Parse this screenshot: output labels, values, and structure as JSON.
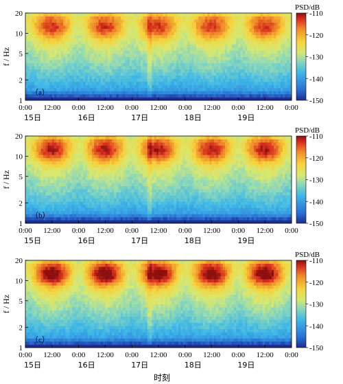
{
  "chart_data": [
    {
      "type": "heatmap",
      "panel_label": "（a）",
      "ylabel": "f / Hz",
      "y_scale": "log",
      "ylim": [
        1,
        20
      ],
      "y_ticks": [
        "1",
        "2",
        "5",
        "10",
        "20"
      ],
      "x_tick_labels": [
        "0:00",
        "12:00",
        "0:00",
        "12:00",
        "0:00",
        "12:00",
        "0:00",
        "12:00",
        "0:00",
        "12:00",
        "0:00"
      ],
      "day_labels": [
        "15日",
        "16日",
        "17日",
        "18日",
        "19日"
      ],
      "colorbar": {
        "title": "PSD/dB",
        "range": [
          -150,
          -110
        ],
        "ticks": [
          "-110",
          "-120",
          "-130",
          "-140",
          "-150"
        ]
      }
    },
    {
      "type": "heatmap",
      "panel_label": "（b）",
      "ylabel": "f / Hz",
      "y_scale": "log",
      "ylim": [
        1,
        20
      ],
      "y_ticks": [
        "1",
        "2",
        "5",
        "10",
        "20"
      ],
      "x_tick_labels": [
        "0:00",
        "12:00",
        "0:00",
        "12:00",
        "0:00",
        "12:00",
        "0:00",
        "12:00",
        "0:00",
        "12:00",
        "0:00"
      ],
      "day_labels": [
        "15日",
        "16日",
        "17日",
        "18日",
        "19日"
      ],
      "colorbar": {
        "title": "PSD/dB",
        "range": [
          -150,
          -110
        ],
        "ticks": [
          "-110",
          "-120",
          "-130",
          "-140",
          "-150"
        ]
      }
    },
    {
      "type": "heatmap",
      "panel_label": "（c）",
      "ylabel": "f / Hz",
      "y_scale": "log",
      "ylim": [
        1,
        20
      ],
      "y_ticks": [
        "1",
        "2",
        "5",
        "10",
        "20"
      ],
      "x_tick_labels": [
        "0:00",
        "12:00",
        "0:00",
        "12:00",
        "0:00",
        "12:00",
        "0:00",
        "12:00",
        "0:00",
        "12:00",
        "0:00"
      ],
      "day_labels": [
        "15日",
        "16日",
        "17日",
        "18日",
        "19日"
      ],
      "colorbar": {
        "title": "PSD/dB",
        "range": [
          -150,
          -110
        ],
        "ticks": [
          "-110",
          "-120",
          "-130",
          "-140",
          "-150"
        ]
      }
    }
  ],
  "xlabel": "时刻"
}
